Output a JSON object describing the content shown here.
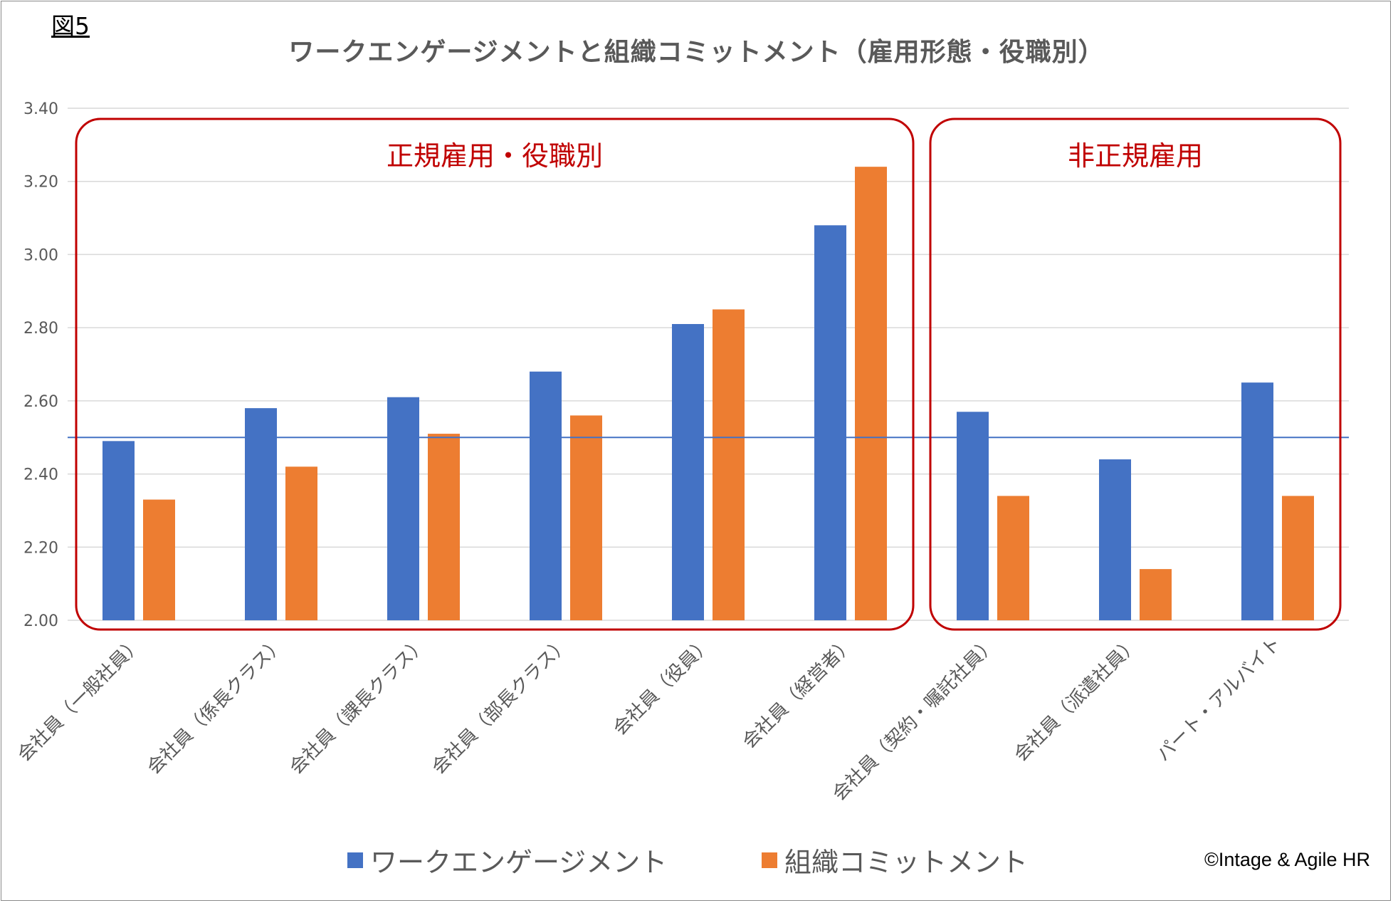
{
  "figure_label": "図5",
  "copyright": "©Intage & Agile HR",
  "colors": {
    "engagement": "#4472c4",
    "commitment": "#ed7d31",
    "group_box": "#c00000",
    "group_label": "#c00000",
    "reference_line": "#4472c4",
    "gridline": "#d9d9d9",
    "axis_text": "#595959"
  },
  "chart_data": {
    "type": "bar",
    "title": "ワークエンゲージメントと組織コミットメント（雇用形態・役職別）",
    "xlabel": "",
    "ylabel": "",
    "ylim": [
      2.0,
      3.4
    ],
    "yticks": [
      "2.00",
      "2.20",
      "2.40",
      "2.60",
      "2.80",
      "3.00",
      "3.20",
      "3.40"
    ],
    "grid": true,
    "legend_position": "bottom",
    "categories": [
      "会社員（一般社員）",
      "会社員（係長クラス）",
      "会社員（課長クラス）",
      "会社員（部長クラス）",
      "会社員（役員）",
      "会社員（経営者）",
      "会社員（契約・嘱託社員）",
      "会社員（派遣社員）",
      "パート・アルバイト"
    ],
    "series": [
      {
        "name": "ワークエンゲージメント",
        "values": [
          2.49,
          2.58,
          2.61,
          2.68,
          2.81,
          3.08,
          2.57,
          2.44,
          2.65
        ]
      },
      {
        "name": "組織コミットメント",
        "values": [
          2.33,
          2.42,
          2.51,
          2.56,
          2.85,
          3.24,
          2.34,
          2.14,
          2.34
        ]
      }
    ],
    "reference_line": 2.5,
    "groups": [
      {
        "label": "正規雇用・役職別",
        "start": 0,
        "end": 5
      },
      {
        "label": "非正規雇用",
        "start": 6,
        "end": 8
      }
    ]
  }
}
